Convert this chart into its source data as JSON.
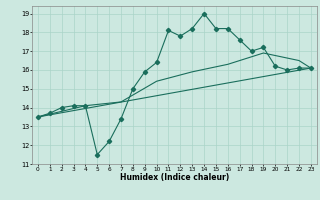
{
  "xlabel": "Humidex (Indice chaleur)",
  "ylabel": "",
  "bg_color": "#cce8e0",
  "grid_color": "#aad4c8",
  "line_color": "#1a6e5c",
  "xlim": [
    -0.5,
    23.5
  ],
  "ylim": [
    11,
    19.4
  ],
  "xticks": [
    0,
    1,
    2,
    3,
    4,
    5,
    6,
    7,
    8,
    9,
    10,
    11,
    12,
    13,
    14,
    15,
    16,
    17,
    18,
    19,
    20,
    21,
    22,
    23
  ],
  "yticks": [
    11,
    12,
    13,
    14,
    15,
    16,
    17,
    18,
    19
  ],
  "line1_x": [
    0,
    1,
    2,
    3,
    4,
    5,
    6,
    7,
    8,
    9,
    10,
    11,
    12,
    13,
    14,
    15,
    16,
    17,
    18,
    19,
    20,
    21,
    22,
    23
  ],
  "line1_y": [
    13.5,
    13.7,
    14.0,
    14.1,
    14.1,
    11.5,
    12.2,
    13.4,
    15.0,
    15.9,
    16.4,
    18.1,
    17.8,
    18.2,
    19.0,
    18.2,
    18.2,
    17.6,
    17.0,
    17.2,
    16.2,
    16.0,
    16.1,
    16.1
  ],
  "line2_x": [
    0,
    4,
    7,
    10,
    13,
    16,
    19,
    22,
    23
  ],
  "line2_y": [
    13.5,
    14.1,
    14.3,
    15.4,
    15.9,
    16.3,
    16.9,
    16.5,
    16.1
  ],
  "line3_x": [
    0,
    23
  ],
  "line3_y": [
    13.5,
    16.1
  ]
}
